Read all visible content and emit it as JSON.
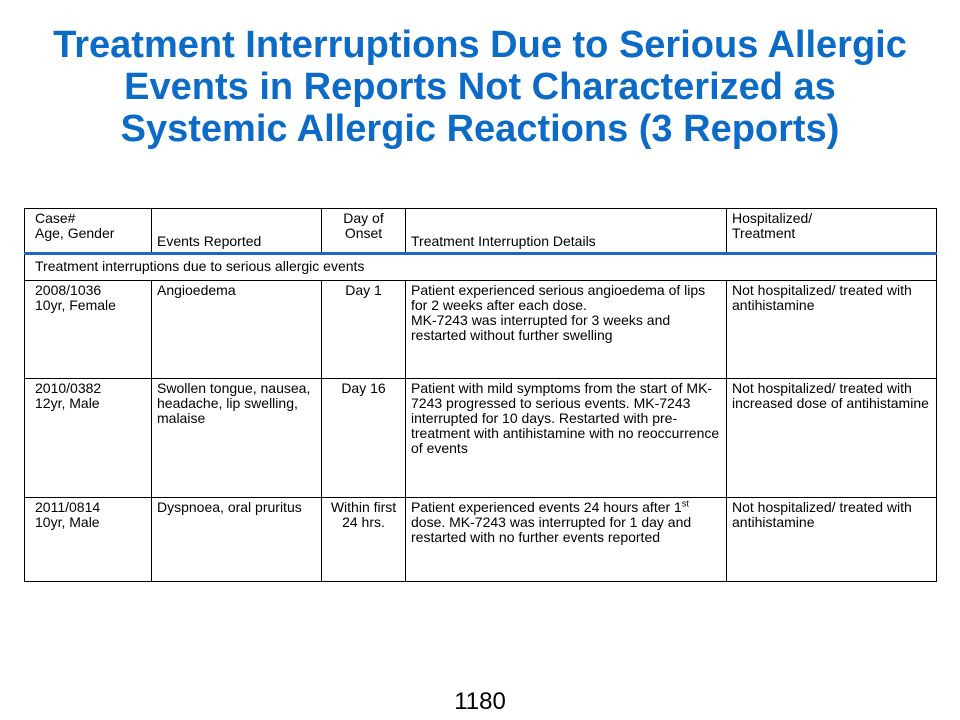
{
  "title": {
    "line1": "Treatment Interruptions Due to Serious Allergic",
    "line2": "Events in Reports Not Characterized as",
    "line3": "Systemic Allergic Reactions (3 Reports)"
  },
  "table": {
    "headers": {
      "case_line1": "Case#",
      "case_line2": "Age, Gender",
      "events": "Events Reported",
      "onset_line1": "Day of",
      "onset_line2": "Onset",
      "details": "Treatment Interruption Details",
      "hosp_line1": "Hospitalized/",
      "hosp_line2": "Treatment"
    },
    "section_label": "Treatment interruptions due to serious allergic events",
    "rows": [
      {
        "case_id": "2008/1036",
        "age_gender": "10yr, Female",
        "events": "Angioedema",
        "onset": "Day 1",
        "details_line1": "Patient experienced serious angioedema of lips for 2 weeks after each dose.",
        "details_line2": "MK-7243 was interrupted for 3 weeks and restarted without further swelling",
        "hospitalized": "Not hospitalized/ treated with antihistamine"
      },
      {
        "case_id": "2010/0382",
        "age_gender": "12yr, Male",
        "events": "Swollen tongue, nausea, headache, lip swelling, malaise",
        "onset": "Day 16",
        "details": "Patient with mild symptoms from the start of MK-7243 progressed to serious events. MK-7243 interrupted for 10 days. Restarted with pre-treatment with antihistamine with no reoccurrence of events",
        "hospitalized": "Not hospitalized/ treated with increased dose of antihistamine"
      },
      {
        "case_id": "2011/0814",
        "age_gender": "10yr, Male",
        "events": "Dyspnoea, oral pruritus",
        "onset": "Within first 24 hrs.",
        "details_pre": "Patient experienced events 24 hours after 1",
        "details_sup": "st",
        "details_post": " dose. MK-7243 was interrupted for 1 day and restarted with no further events reported",
        "hospitalized": "Not hospitalized/ treated with antihistamine"
      }
    ]
  },
  "page_number": "1180"
}
